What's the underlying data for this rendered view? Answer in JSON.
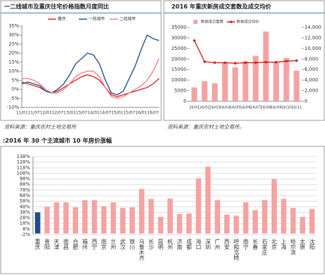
{
  "chart_data": [
    {
      "type": "line",
      "title": "一二线城市及重庆住宅价格指数月度同比",
      "source": "资料来源：重庆农村土地交易所",
      "categories": [
        "11/01",
        null,
        "11/07",
        null,
        "12/01",
        null,
        "12/07",
        null,
        "13/01",
        null,
        "13/07",
        null,
        "14/01",
        null,
        "14/07",
        null,
        "15/01",
        null,
        "15/07",
        null,
        "16/01",
        null,
        "16/07",
        null
      ],
      "series": [
        {
          "name": "重庆",
          "color": "#e02020",
          "values": [
            4,
            3,
            2,
            1,
            -1,
            -2,
            -1,
            1,
            3,
            5,
            7,
            8,
            7,
            5,
            1,
            -3,
            -4,
            -3,
            -2,
            -1,
            0,
            1,
            3,
            6
          ]
        },
        {
          "name": "一线城市",
          "color": "#1f4e8c",
          "values": [
            3,
            4,
            3,
            2,
            -1,
            -2,
            0,
            3,
            8,
            14,
            17,
            20,
            19,
            14,
            5,
            -2,
            -3,
            -1,
            6,
            13,
            22,
            30,
            28,
            27
          ]
        },
        {
          "name": "二线城市",
          "color": "#f08080",
          "values": [
            6,
            6,
            5,
            3,
            0,
            -2,
            -2,
            0,
            3,
            7,
            9,
            10,
            10,
            7,
            1,
            -4,
            -5,
            -4,
            -2,
            0,
            2,
            5,
            10,
            17
          ]
        }
      ],
      "ylim": [
        -10,
        35
      ],
      "yticks": [
        {
          "value": -10,
          "label": "-10%"
        },
        {
          "value": -5,
          "label": "-5%"
        },
        {
          "value": 0,
          "label": "0%"
        },
        {
          "value": 5,
          "label": "5%"
        },
        {
          "value": 10,
          "label": "10%"
        },
        {
          "value": 15,
          "label": "15%"
        },
        {
          "value": 20,
          "label": "20%"
        },
        {
          "value": 25,
          "label": "25%"
        },
        {
          "value": 30,
          "label": "30%"
        },
        {
          "value": 35,
          "label": "35%"
        }
      ],
      "grid": false,
      "legend": "top"
    },
    {
      "type": "combo",
      "title": "2016 年重庆新房成交套数及成交均价",
      "source": "资料来源：重庆农村土地交易所。",
      "categories": [
        "16/01",
        "16/02",
        "16/03",
        "16/04",
        "16/05",
        "16/06",
        "16/07",
        "16/08",
        "16/09",
        "16/10",
        "16/11"
      ],
      "series": [
        {
          "name": "新房成交套数",
          "type": "bar",
          "color": "#f4a3a3",
          "values": [
            6500,
            9500,
            8500,
            18500,
            16000,
            19000,
            21500,
            33000,
            18500,
            20500,
            14500
          ]
        },
        {
          "name": "新房成交均价",
          "type": "line",
          "axis": "y2",
          "color": "#d41c1c",
          "values": [
            11500,
            7500,
            7300,
            7300,
            7200,
            7300,
            7300,
            7400,
            7400,
            7600,
            7700
          ]
        }
      ],
      "ylim": [
        0,
        35000
      ],
      "yticks": [
        0,
        5000,
        10000,
        15000,
        20000,
        25000,
        30000,
        35000
      ],
      "y2lim": [
        0,
        14000
      ],
      "y2ticks": [
        0,
        {
          "value": 2000,
          "label": "2,000"
        },
        {
          "value": 4000,
          "label": "4,000"
        },
        {
          "value": 6000,
          "label": "6,000"
        },
        {
          "value": 8000,
          "label": "8,000"
        },
        {
          "value": 10000,
          "label": "10,000"
        },
        {
          "value": 12000,
          "label": "12,000"
        },
        {
          "value": 14000,
          "label": "14,000"
        }
      ],
      "grid": false,
      "legend": "top-left"
    },
    {
      "type": "bar",
      "title": ":2016 年 30 个主流城市 10 年房价涨幅",
      "categories": [
        "重庆",
        "贵阳",
        "天津",
        "南昌",
        "合肥",
        "福州",
        "西宁",
        "南京",
        "兰州",
        "武汉",
        "银川",
        "乌鲁木齐",
        "长沙",
        "昆明",
        "杭州",
        "济南",
        "成都",
        "海口",
        "深圳",
        "广州",
        "西安",
        "呼和浩特",
        "南宁",
        "长春",
        "石家庄",
        "北京",
        "上海",
        "哈尔滨",
        "太原",
        "沈阳"
      ],
      "values": [
        38,
        48,
        56,
        56,
        47,
        60,
        60,
        49,
        56,
        46,
        47,
        80,
        62,
        30,
        63,
        35,
        36,
        99,
        120,
        60,
        34,
        32,
        56,
        42,
        60,
        98,
        62,
        46,
        30,
        44
      ],
      "colors": [
        "#1f4e8c",
        "#f4a3a3",
        "#f4a3a3",
        "#f4a3a3",
        "#f4a3a3",
        "#f4a3a3",
        "#f4a3a3",
        "#f4a3a3",
        "#f4a3a3",
        "#f4a3a3",
        "#f4a3a3",
        "#f4a3a3",
        "#f4a3a3",
        "#f4a3a3",
        "#f4a3a3",
        "#f4a3a3",
        "#f4a3a3",
        "#f4a3a3",
        "#f4a3a3",
        "#f4a3a3",
        "#f4a3a3",
        "#f4a3a3",
        "#f4a3a3",
        "#f4a3a3",
        "#f4a3a3",
        "#f4a3a3",
        "#f4a3a3",
        "#f4a3a3",
        "#f4a3a3",
        "#f4a3a3"
      ],
      "ylim": [
        -2,
        138
      ],
      "yticks": [
        {
          "value": -2,
          "label": "-2%"
        },
        {
          "value": 8,
          "label": "8%"
        },
        {
          "value": 18,
          "label": "18%"
        },
        {
          "value": 28,
          "label": "28%"
        },
        {
          "value": 38,
          "label": "38%"
        },
        {
          "value": 48,
          "label": "48%"
        },
        {
          "value": 58,
          "label": "58%"
        },
        {
          "value": 68,
          "label": "68%"
        },
        {
          "value": 78,
          "label": "78%"
        },
        {
          "value": 88,
          "label": "88%"
        },
        {
          "value": 98,
          "label": "98%"
        },
        {
          "value": 108,
          "label": "108%"
        },
        {
          "value": 118,
          "label": "118%"
        },
        {
          "value": 128,
          "label": "128%"
        },
        {
          "value": 138,
          "label": "138%"
        }
      ],
      "grid": true
    }
  ]
}
